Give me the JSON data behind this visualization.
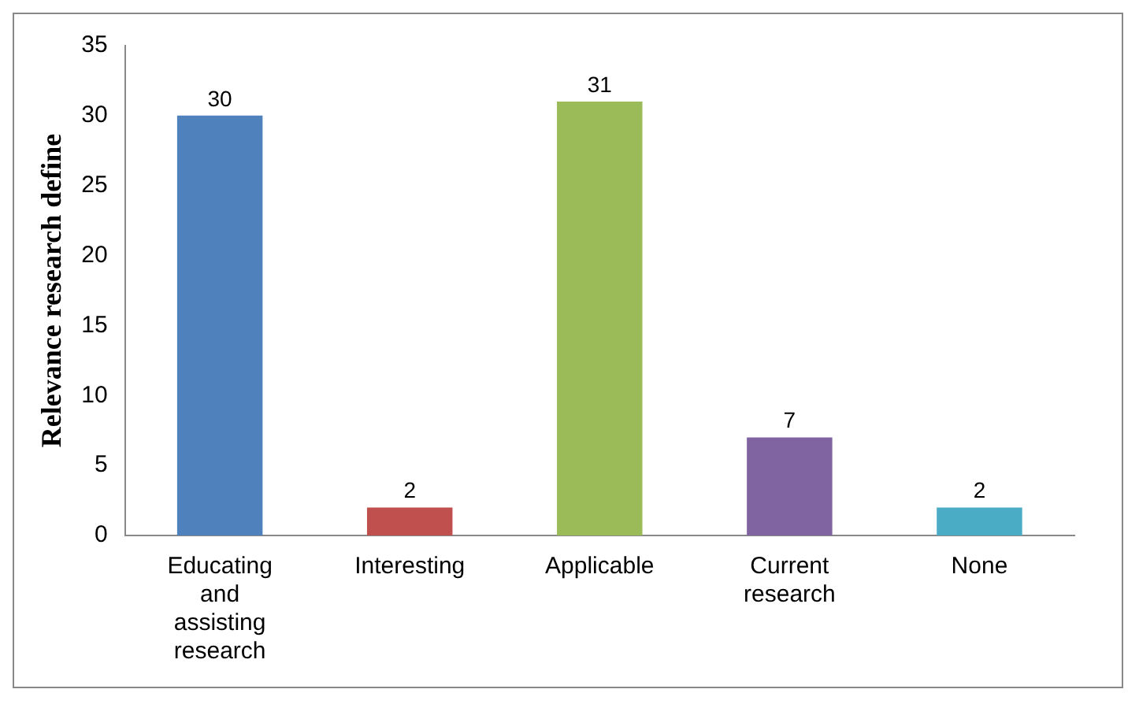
{
  "chart_data": {
    "type": "bar",
    "ylabel": "Relevance research define",
    "categories": [
      "Educating and assisting research",
      "Interesting",
      "Applicable",
      "Current research",
      "None"
    ],
    "values": [
      30,
      2,
      31,
      7,
      2
    ],
    "colors": [
      "#4f81bd",
      "#c0504d",
      "#9bbb59",
      "#8064a2",
      "#4bacc6"
    ],
    "ylim": [
      0,
      35
    ],
    "yticks": [
      0,
      5,
      10,
      15,
      20,
      25,
      30,
      35
    ],
    "grid": false,
    "legend": false,
    "data_labels": true
  }
}
